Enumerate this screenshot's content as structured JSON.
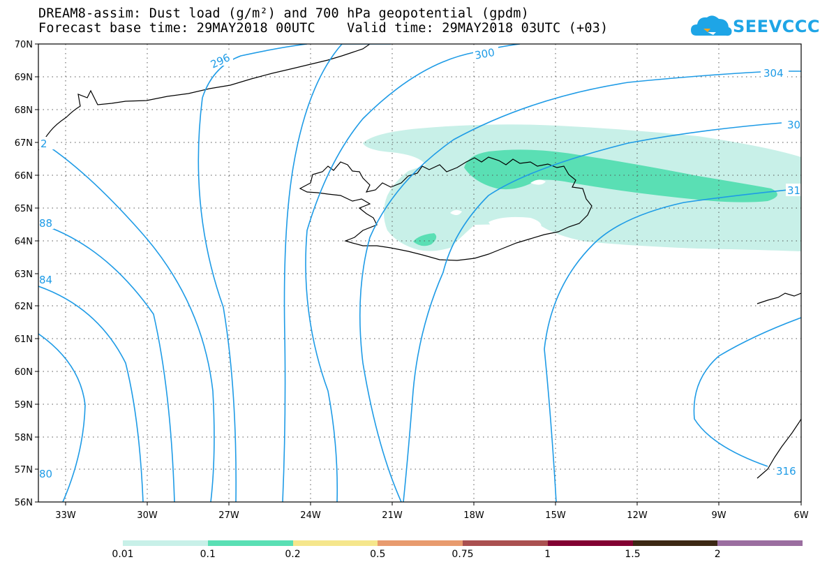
{
  "title": {
    "line1": "DREAM8-assim: Dust load (g/m²) and 700 hPa geopotential (gpdm)",
    "line2": "Forecast base time: 29MAY2018 00UTC    Valid time: 29MAY2018 03UTC (+03)"
  },
  "logo": {
    "text": "SEEVCCC"
  },
  "map": {
    "lat_labels": [
      "70N",
      "69N",
      "68N",
      "67N",
      "66N",
      "65N",
      "64N",
      "63N",
      "62N",
      "61N",
      "60N",
      "59N",
      "58N",
      "57N",
      "56N"
    ],
    "lon_labels": [
      "33W",
      "30W",
      "27W",
      "24W",
      "21W",
      "18W",
      "15W",
      "12W",
      "9W",
      "6W"
    ],
    "contour_labels": {
      "c296": "296",
      "c300": "300",
      "c304": "304",
      "c308": "30",
      "c312": "31",
      "c316": "316",
      "c292": "2",
      "c288": "88",
      "c284": "84",
      "c280": "80"
    }
  },
  "legend": {
    "colors": [
      "#c8f0e8",
      "#5adfb4",
      "#f5e68c",
      "#e89b6e",
      "#aa5050",
      "#820032",
      "#3c2814",
      "#9b6ea0"
    ],
    "labels": [
      "0.01",
      "0.1",
      "0.2",
      "0.5",
      "0.75",
      "1",
      "1.5",
      "2"
    ]
  }
}
